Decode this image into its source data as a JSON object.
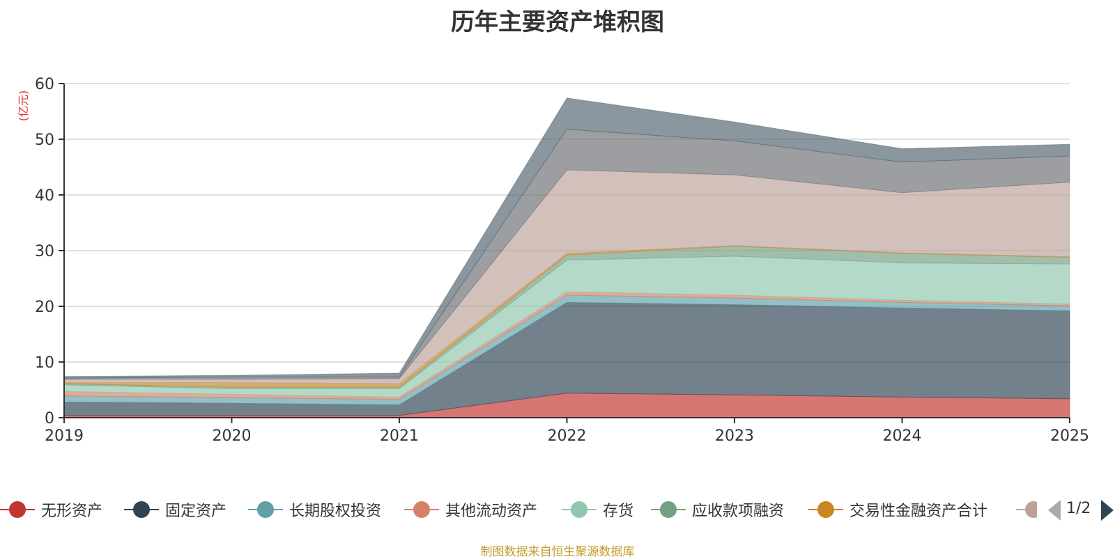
{
  "chart_data": {
    "type": "area",
    "stacked": true,
    "title": "历年主要资产堆积图",
    "ylabel": "(亿元)",
    "xlabel": "",
    "categories": [
      "2019",
      "2020",
      "2021",
      "2022",
      "2023",
      "2024",
      "2025"
    ],
    "ylim": [
      0,
      60
    ],
    "yticks": [
      0,
      10,
      20,
      30,
      40,
      50,
      60
    ],
    "grid": true,
    "series": [
      {
        "name": "无形资产",
        "color": "#c23531",
        "values": [
          0.4,
          0.4,
          0.4,
          4.4,
          4.1,
          3.7,
          3.4
        ]
      },
      {
        "name": "固定资产",
        "color": "#2f4554",
        "values": [
          2.4,
          2.2,
          1.9,
          16.3,
          16.2,
          16.0,
          15.8
        ]
      },
      {
        "name": "长期股权投资",
        "color": "#61a0a8",
        "values": [
          1.1,
          1.0,
          1.0,
          1.3,
          1.2,
          1.0,
          0.9
        ]
      },
      {
        "name": "其他流动资产",
        "color": "#d48265",
        "values": [
          0.8,
          0.6,
          0.4,
          0.6,
          0.5,
          0.4,
          0.3
        ]
      },
      {
        "name": "存货",
        "color": "#91c7ae",
        "values": [
          1.2,
          1.0,
          1.5,
          5.7,
          7.0,
          6.7,
          7.2
        ]
      },
      {
        "name": "应收款项融资",
        "color": "#749f83",
        "values": [
          0.2,
          0.3,
          0.3,
          0.9,
          1.8,
          1.7,
          1.2
        ]
      },
      {
        "name": "交易性金融资产合计",
        "color": "#ca8622",
        "values": [
          0.2,
          0.8,
          0.6,
          0.3,
          0.1,
          0.1,
          0.1
        ]
      },
      {
        "name": "",
        "color": "#bda29a",
        "values": [
          0.6,
          0.6,
          0.9,
          15.0,
          12.7,
          10.8,
          13.4
        ]
      },
      {
        "name": "",
        "color": "#6e7074",
        "values": [
          0.2,
          0.4,
          0.3,
          7.3,
          6.1,
          5.5,
          4.7
        ]
      },
      {
        "name": "",
        "color": "#546570",
        "values": [
          0.3,
          0.3,
          0.7,
          5.6,
          3.4,
          2.4,
          2.1
        ]
      }
    ]
  },
  "legend": {
    "page": "1/2",
    "items": [
      {
        "label": "无形资产",
        "color": "#c23531"
      },
      {
        "label": "固定资产",
        "color": "#2f4554"
      },
      {
        "label": "长期股权投资",
        "color": "#61a0a8"
      },
      {
        "label": "其他流动资产",
        "color": "#d48265"
      },
      {
        "label": "存货",
        "color": "#91c7ae"
      },
      {
        "label": "应收款项融资",
        "color": "#749f83"
      },
      {
        "label": "交易性金融资产合计",
        "color": "#ca8622"
      },
      {
        "label": "",
        "color": "#bda29a"
      }
    ]
  },
  "footer": {
    "source": "制图数据来自恒生聚源数据库"
  }
}
